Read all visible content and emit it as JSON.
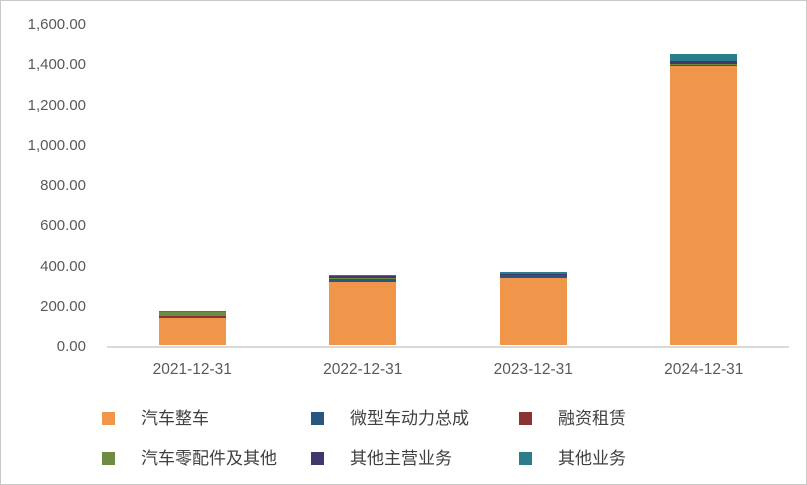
{
  "chart_data": {
    "type": "bar",
    "stacked": true,
    "title": "",
    "xlabel": "",
    "ylabel": "",
    "categories": [
      "2021-12-31",
      "2022-12-31",
      "2023-12-31",
      "2024-12-31"
    ],
    "series": [
      {
        "name": "汽车整车",
        "color": "#F0964B",
        "values": [
          138,
          315,
          335,
          1385
        ]
      },
      {
        "name": "微型车动力总成",
        "color": "#27567F",
        "values": [
          3,
          10,
          12,
          5
        ]
      },
      {
        "name": "融资租赁",
        "color": "#8B3233",
        "values": [
          2,
          3,
          3,
          2
        ]
      },
      {
        "name": "汽车零配件及其他",
        "color": "#6E8C41",
        "values": [
          25,
          5,
          3,
          3
        ]
      },
      {
        "name": "其他主营业务",
        "color": "#41376B",
        "values": [
          1,
          8,
          2,
          18
        ]
      },
      {
        "name": "其他业务",
        "color": "#2B7D8C",
        "values": [
          1,
          8,
          8,
          35
        ]
      }
    ],
    "ylim": [
      0,
      1600
    ],
    "ytick_interval": 200,
    "ytick_labels": [
      "0.00",
      "200.00",
      "400.00",
      "600.00",
      "800.00",
      "1,000.00",
      "1,200.00",
      "1,400.00",
      "1,600.00"
    ],
    "grid": false,
    "legend_position": "bottom",
    "legend_rows": 2,
    "legend_columns": 3
  },
  "style": {
    "axis_line_color": "#d9d9d9",
    "tick_text_color": "#595959",
    "legend_text_color": "#404040",
    "background": "#ffffff"
  }
}
